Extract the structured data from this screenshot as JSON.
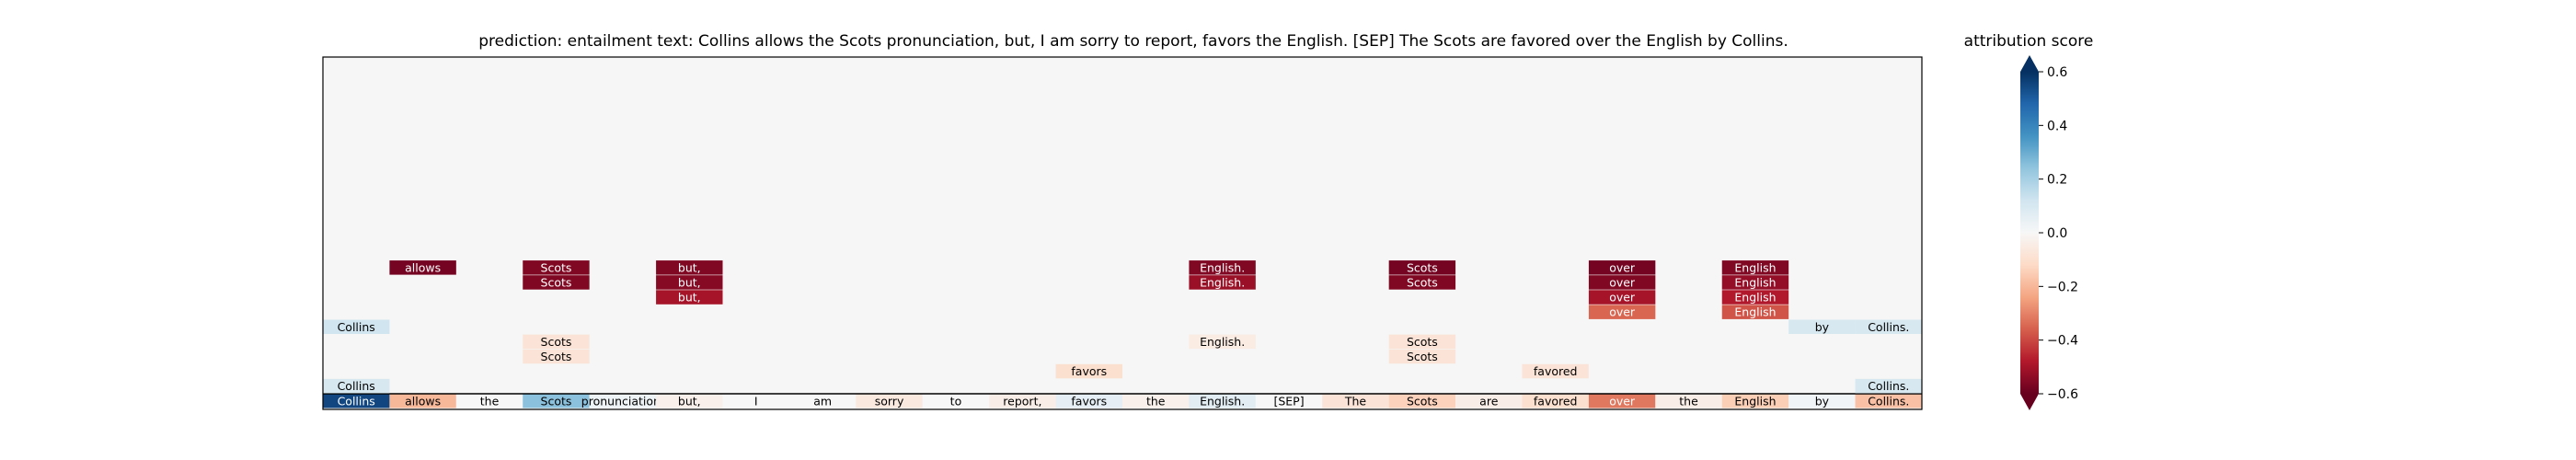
{
  "header": {
    "title": "prediction:  entailment     text:  Collins allows the Scots pronunciation, but, I am sorry to report, favors the English. [SEP] The Scots are favored over the English by Collins."
  },
  "colorbar": {
    "title": "attribution score",
    "ticks": [
      "0.6",
      "0.4",
      "0.2",
      "0.0",
      "−0.2",
      "−0.4",
      "−0.6"
    ]
  },
  "chart_data": {
    "type": "heatmap",
    "title": "prediction:  entailment     text:  Collins allows the Scots pronunciation, but, I am sorry to report, favors the English. [SEP] The Scots are favored over the English by Collins.",
    "colorbar_label": "attribution score",
    "colormap": "RdBu",
    "vmin": -0.6,
    "vmax": 0.6,
    "colorbar_extend": "both",
    "background_color": "#f5f6f5",
    "columns": [
      "Collins",
      "allows",
      "the",
      "Scots",
      "pronunciation,",
      "but,",
      "I",
      "am",
      "sorry",
      "to",
      "report,",
      "favors",
      "the",
      "English.",
      "[SEP]",
      "The",
      "Scots",
      "are",
      "favored",
      "over",
      "the",
      "English",
      "by",
      "Collins."
    ],
    "bottom_row": {
      "tokens": [
        "Collins",
        "allows",
        "the",
        "Scots",
        "pronunciation,",
        "but,",
        "I",
        "am",
        "sorry",
        "to",
        "report,",
        "favors",
        "the",
        "English.",
        "[SEP]",
        "The",
        "Scots",
        "are",
        "favored",
        "over",
        "the",
        "English",
        "by",
        "Collins."
      ],
      "values": [
        0.55,
        -0.2,
        0.0,
        0.25,
        0.03,
        -0.03,
        0.0,
        0.0,
        -0.06,
        0.0,
        -0.04,
        0.06,
        -0.03,
        0.07,
        0.0,
        -0.08,
        -0.14,
        -0.04,
        -0.1,
        -0.32,
        -0.04,
        -0.15,
        0.02,
        -0.18
      ]
    },
    "cells": [
      {
        "col": 0,
        "level": 1,
        "token": "Collins",
        "value": 0.1
      },
      {
        "col": 0,
        "level": 5,
        "token": "Collins",
        "value": 0.12
      },
      {
        "col": 1,
        "level": 9,
        "token": "allows",
        "value": -0.58
      },
      {
        "col": 3,
        "level": 3,
        "token": "Scots",
        "value": -0.08
      },
      {
        "col": 3,
        "level": 4,
        "token": "Scots",
        "value": -0.08
      },
      {
        "col": 3,
        "level": 8,
        "token": "Scots",
        "value": -0.56
      },
      {
        "col": 3,
        "level": 9,
        "token": "Scots",
        "value": -0.56
      },
      {
        "col": 5,
        "level": 7,
        "token": "but,",
        "value": -0.5
      },
      {
        "col": 5,
        "level": 8,
        "token": "but,",
        "value": -0.55
      },
      {
        "col": 5,
        "level": 9,
        "token": "but,",
        "value": -0.56
      },
      {
        "col": 11,
        "level": 2,
        "token": "favors",
        "value": -0.1
      },
      {
        "col": 13,
        "level": 4,
        "token": "English.",
        "value": -0.05
      },
      {
        "col": 13,
        "level": 8,
        "token": "English.",
        "value": -0.52
      },
      {
        "col": 13,
        "level": 9,
        "token": "English.",
        "value": -0.56
      },
      {
        "col": 16,
        "level": 3,
        "token": "Scots",
        "value": -0.08
      },
      {
        "col": 16,
        "level": 4,
        "token": "Scots",
        "value": -0.08
      },
      {
        "col": 16,
        "level": 8,
        "token": "Scots",
        "value": -0.56
      },
      {
        "col": 16,
        "level": 9,
        "token": "Scots",
        "value": -0.58
      },
      {
        "col": 18,
        "level": 2,
        "token": "favored",
        "value": -0.08
      },
      {
        "col": 19,
        "level": 6,
        "token": "over",
        "value": -0.35
      },
      {
        "col": 19,
        "level": 7,
        "token": "over",
        "value": -0.5
      },
      {
        "col": 19,
        "level": 8,
        "token": "over",
        "value": -0.56
      },
      {
        "col": 19,
        "level": 9,
        "token": "over",
        "value": -0.58
      },
      {
        "col": 21,
        "level": 6,
        "token": "English",
        "value": -0.38
      },
      {
        "col": 21,
        "level": 7,
        "token": "English",
        "value": -0.48
      },
      {
        "col": 21,
        "level": 8,
        "token": "English",
        "value": -0.53
      },
      {
        "col": 21,
        "level": 9,
        "token": "English",
        "value": -0.56
      },
      {
        "col": 22,
        "level": 5,
        "token": "by",
        "value": 0.1
      },
      {
        "col": 23,
        "level": 1,
        "token": "Collins.",
        "value": 0.1
      },
      {
        "col": 23,
        "level": 5,
        "token": "Collins.",
        "value": 0.1
      }
    ]
  }
}
